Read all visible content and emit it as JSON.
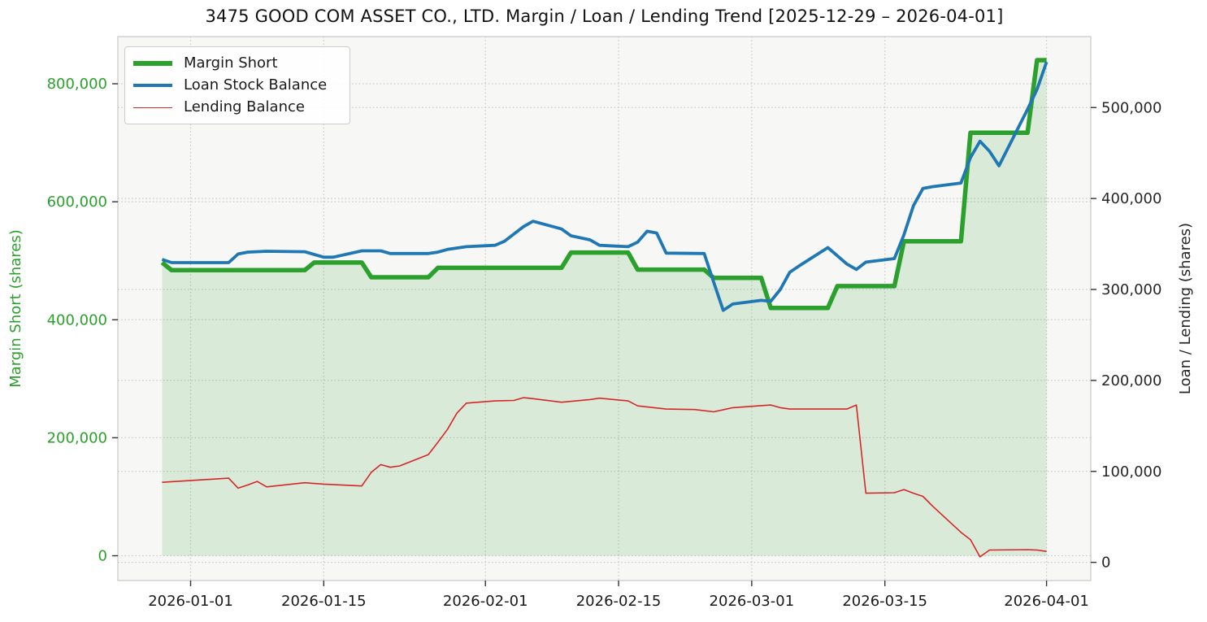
{
  "figure": {
    "background": "#ffffff",
    "plot_background": "#f7f7f6",
    "grid_color": "#cbc7c7",
    "spine_color": "#c8c8c8",
    "tick_mark_color": "#333333"
  },
  "legend": {
    "position": "upper left",
    "items": [
      {
        "label": "Margin Short",
        "color": "#2ca02c",
        "linewidth": 6
      },
      {
        "label": "Loan Stock Balance",
        "color": "#1f77b4",
        "linewidth": 4
      },
      {
        "label": "Lending Balance",
        "color": "#d62728",
        "linewidth": 1.6
      }
    ]
  },
  "chart_data": {
    "type": "line",
    "title": "3475 GOOD COM ASSET CO., LTD. Margin / Loan / Lending Trend [2025-12-29 – 2026-04-01]",
    "date_range": [
      "2025-12-29",
      "2026-04-01"
    ],
    "grid": true,
    "x_axis": {
      "epoch": "2026-01-01",
      "lim_days": [
        -7.65,
        94.65
      ],
      "tick_dates": [
        "2026-01-01",
        "2026-01-15",
        "2026-02-01",
        "2026-02-15",
        "2026-03-01",
        "2026-03-15",
        "2026-04-01"
      ],
      "tick_labels": [
        "2026-01-01",
        "2026-01-15",
        "2026-02-01",
        "2026-02-15",
        "2026-03-01",
        "2026-03-15",
        "2026-04-01"
      ]
    },
    "left_axis": {
      "label": "Margin Short (shares)",
      "color": "#2ca02c",
      "lim": [
        -42000,
        880000
      ],
      "ticks": [
        0,
        200000,
        400000,
        600000,
        800000
      ]
    },
    "right_axis": {
      "label": "Loan / Lending (shares)",
      "color": "#262626",
      "lim": [
        -20000,
        578000
      ],
      "ticks": [
        0,
        100000,
        200000,
        300000,
        400000,
        500000
      ]
    },
    "series": [
      {
        "name": "Margin Short",
        "axis": "left",
        "color": "#2ca02c",
        "linewidth": 5.5,
        "fill_to_zero": true,
        "fill_alpha": 0.15,
        "points": [
          [
            "2025-12-29",
            497000
          ],
          [
            "2025-12-30",
            484000
          ],
          [
            "2026-01-13",
            484000
          ],
          [
            "2026-01-14",
            497000
          ],
          [
            "2026-01-19",
            497000
          ],
          [
            "2026-01-20",
            472000
          ],
          [
            "2026-01-26",
            472000
          ],
          [
            "2026-01-27",
            488000
          ],
          [
            "2026-02-09",
            488000
          ],
          [
            "2026-02-10",
            514000
          ],
          [
            "2026-02-16",
            514000
          ],
          [
            "2026-02-17",
            485000
          ],
          [
            "2026-02-24",
            485000
          ],
          [
            "2026-02-25",
            471000
          ],
          [
            "2026-03-02",
            471000
          ],
          [
            "2026-03-03",
            420000
          ],
          [
            "2026-03-09",
            420000
          ],
          [
            "2026-03-10",
            457000
          ],
          [
            "2026-03-16",
            457000
          ],
          [
            "2026-03-17",
            533000
          ],
          [
            "2026-03-23",
            533000
          ],
          [
            "2026-03-24",
            717000
          ],
          [
            "2026-03-30",
            717000
          ],
          [
            "2026-03-31",
            840000
          ],
          [
            "2026-04-01",
            840000
          ]
        ]
      },
      {
        "name": "Loan Stock Balance",
        "axis": "right",
        "color": "#1f77b4",
        "linewidth": 3.8,
        "points": [
          [
            "2025-12-29",
            333000
          ],
          [
            "2025-12-30",
            329500
          ],
          [
            "2026-01-05",
            329500
          ],
          [
            "2026-01-06",
            339000
          ],
          [
            "2026-01-07",
            341000
          ],
          [
            "2026-01-09",
            342000
          ],
          [
            "2026-01-13",
            341500
          ],
          [
            "2026-01-15",
            335500
          ],
          [
            "2026-01-16",
            335500
          ],
          [
            "2026-01-19",
            342500
          ],
          [
            "2026-01-21",
            342500
          ],
          [
            "2026-01-22",
            339500
          ],
          [
            "2026-01-26",
            339500
          ],
          [
            "2026-01-27",
            341000
          ],
          [
            "2026-01-28",
            344000
          ],
          [
            "2026-01-30",
            347000
          ],
          [
            "2026-02-02",
            348500
          ],
          [
            "2026-02-03",
            353000
          ],
          [
            "2026-02-04",
            361000
          ],
          [
            "2026-02-05",
            369000
          ],
          [
            "2026-02-06",
            375000
          ],
          [
            "2026-02-09",
            366500
          ],
          [
            "2026-02-10",
            359000
          ],
          [
            "2026-02-12",
            354500
          ],
          [
            "2026-02-13",
            348500
          ],
          [
            "2026-02-16",
            347000
          ],
          [
            "2026-02-17",
            352000
          ],
          [
            "2026-02-18",
            364000
          ],
          [
            "2026-02-19",
            362000
          ],
          [
            "2026-02-20",
            340000
          ],
          [
            "2026-02-24",
            339500
          ],
          [
            "2026-02-25",
            308000
          ],
          [
            "2026-02-26",
            277000
          ],
          [
            "2026-02-27",
            284000
          ],
          [
            "2026-03-02",
            288000
          ],
          [
            "2026-03-03",
            287000
          ],
          [
            "2026-03-04",
            300000
          ],
          [
            "2026-03-05",
            319000
          ],
          [
            "2026-03-06",
            326000
          ],
          [
            "2026-03-09",
            346000
          ],
          [
            "2026-03-10",
            337000
          ],
          [
            "2026-03-11",
            328000
          ],
          [
            "2026-03-12",
            322000
          ],
          [
            "2026-03-13",
            330000
          ],
          [
            "2026-03-16",
            334000
          ],
          [
            "2026-03-17",
            360000
          ],
          [
            "2026-03-18",
            392000
          ],
          [
            "2026-03-19",
            411000
          ],
          [
            "2026-03-20",
            413000
          ],
          [
            "2026-03-23",
            417000
          ],
          [
            "2026-03-24",
            445000
          ],
          [
            "2026-03-25",
            463000
          ],
          [
            "2026-03-26",
            452000
          ],
          [
            "2026-03-27",
            436000
          ],
          [
            "2026-03-30",
            498000
          ],
          [
            "2026-03-31",
            520000
          ],
          [
            "2026-04-01",
            550000
          ]
        ]
      },
      {
        "name": "Lending Balance",
        "axis": "right",
        "color": "#d62728",
        "linewidth": 1.6,
        "points": [
          [
            "2025-12-29",
            88000
          ],
          [
            "2026-01-05",
            92500
          ],
          [
            "2026-01-06",
            81500
          ],
          [
            "2026-01-07",
            85000
          ],
          [
            "2026-01-08",
            89000
          ],
          [
            "2026-01-09",
            83000
          ],
          [
            "2026-01-13",
            87500
          ],
          [
            "2026-01-15",
            86000
          ],
          [
            "2026-01-19",
            84000
          ],
          [
            "2026-01-20",
            99000
          ],
          [
            "2026-01-21",
            107500
          ],
          [
            "2026-01-22",
            104500
          ],
          [
            "2026-01-23",
            106000
          ],
          [
            "2026-01-26",
            118500
          ],
          [
            "2026-01-27",
            132000
          ],
          [
            "2026-01-28",
            146000
          ],
          [
            "2026-01-29",
            164000
          ],
          [
            "2026-01-30",
            175000
          ],
          [
            "2026-02-02",
            177500
          ],
          [
            "2026-02-04",
            178000
          ],
          [
            "2026-02-05",
            181000
          ],
          [
            "2026-02-06",
            180000
          ],
          [
            "2026-02-09",
            176000
          ],
          [
            "2026-02-12",
            179000
          ],
          [
            "2026-02-13",
            180500
          ],
          [
            "2026-02-16",
            177500
          ],
          [
            "2026-02-17",
            172000
          ],
          [
            "2026-02-20",
            168500
          ],
          [
            "2026-02-23",
            168000
          ],
          [
            "2026-02-25",
            165500
          ],
          [
            "2026-02-27",
            170000
          ],
          [
            "2026-03-03",
            173000
          ],
          [
            "2026-03-04",
            170000
          ],
          [
            "2026-03-05",
            168500
          ],
          [
            "2026-03-11",
            168500
          ],
          [
            "2026-03-12",
            173000
          ],
          [
            "2026-03-13",
            76000
          ],
          [
            "2026-03-16",
            76500
          ],
          [
            "2026-03-17",
            80000
          ],
          [
            "2026-03-18",
            76000
          ],
          [
            "2026-03-19",
            72500
          ],
          [
            "2026-03-20",
            62000
          ],
          [
            "2026-03-23",
            33000
          ],
          [
            "2026-03-24",
            25000
          ],
          [
            "2026-03-25",
            6000
          ],
          [
            "2026-03-26",
            13500
          ],
          [
            "2026-03-30",
            14000
          ],
          [
            "2026-03-31",
            13500
          ],
          [
            "2026-04-01",
            12000
          ]
        ]
      }
    ]
  }
}
